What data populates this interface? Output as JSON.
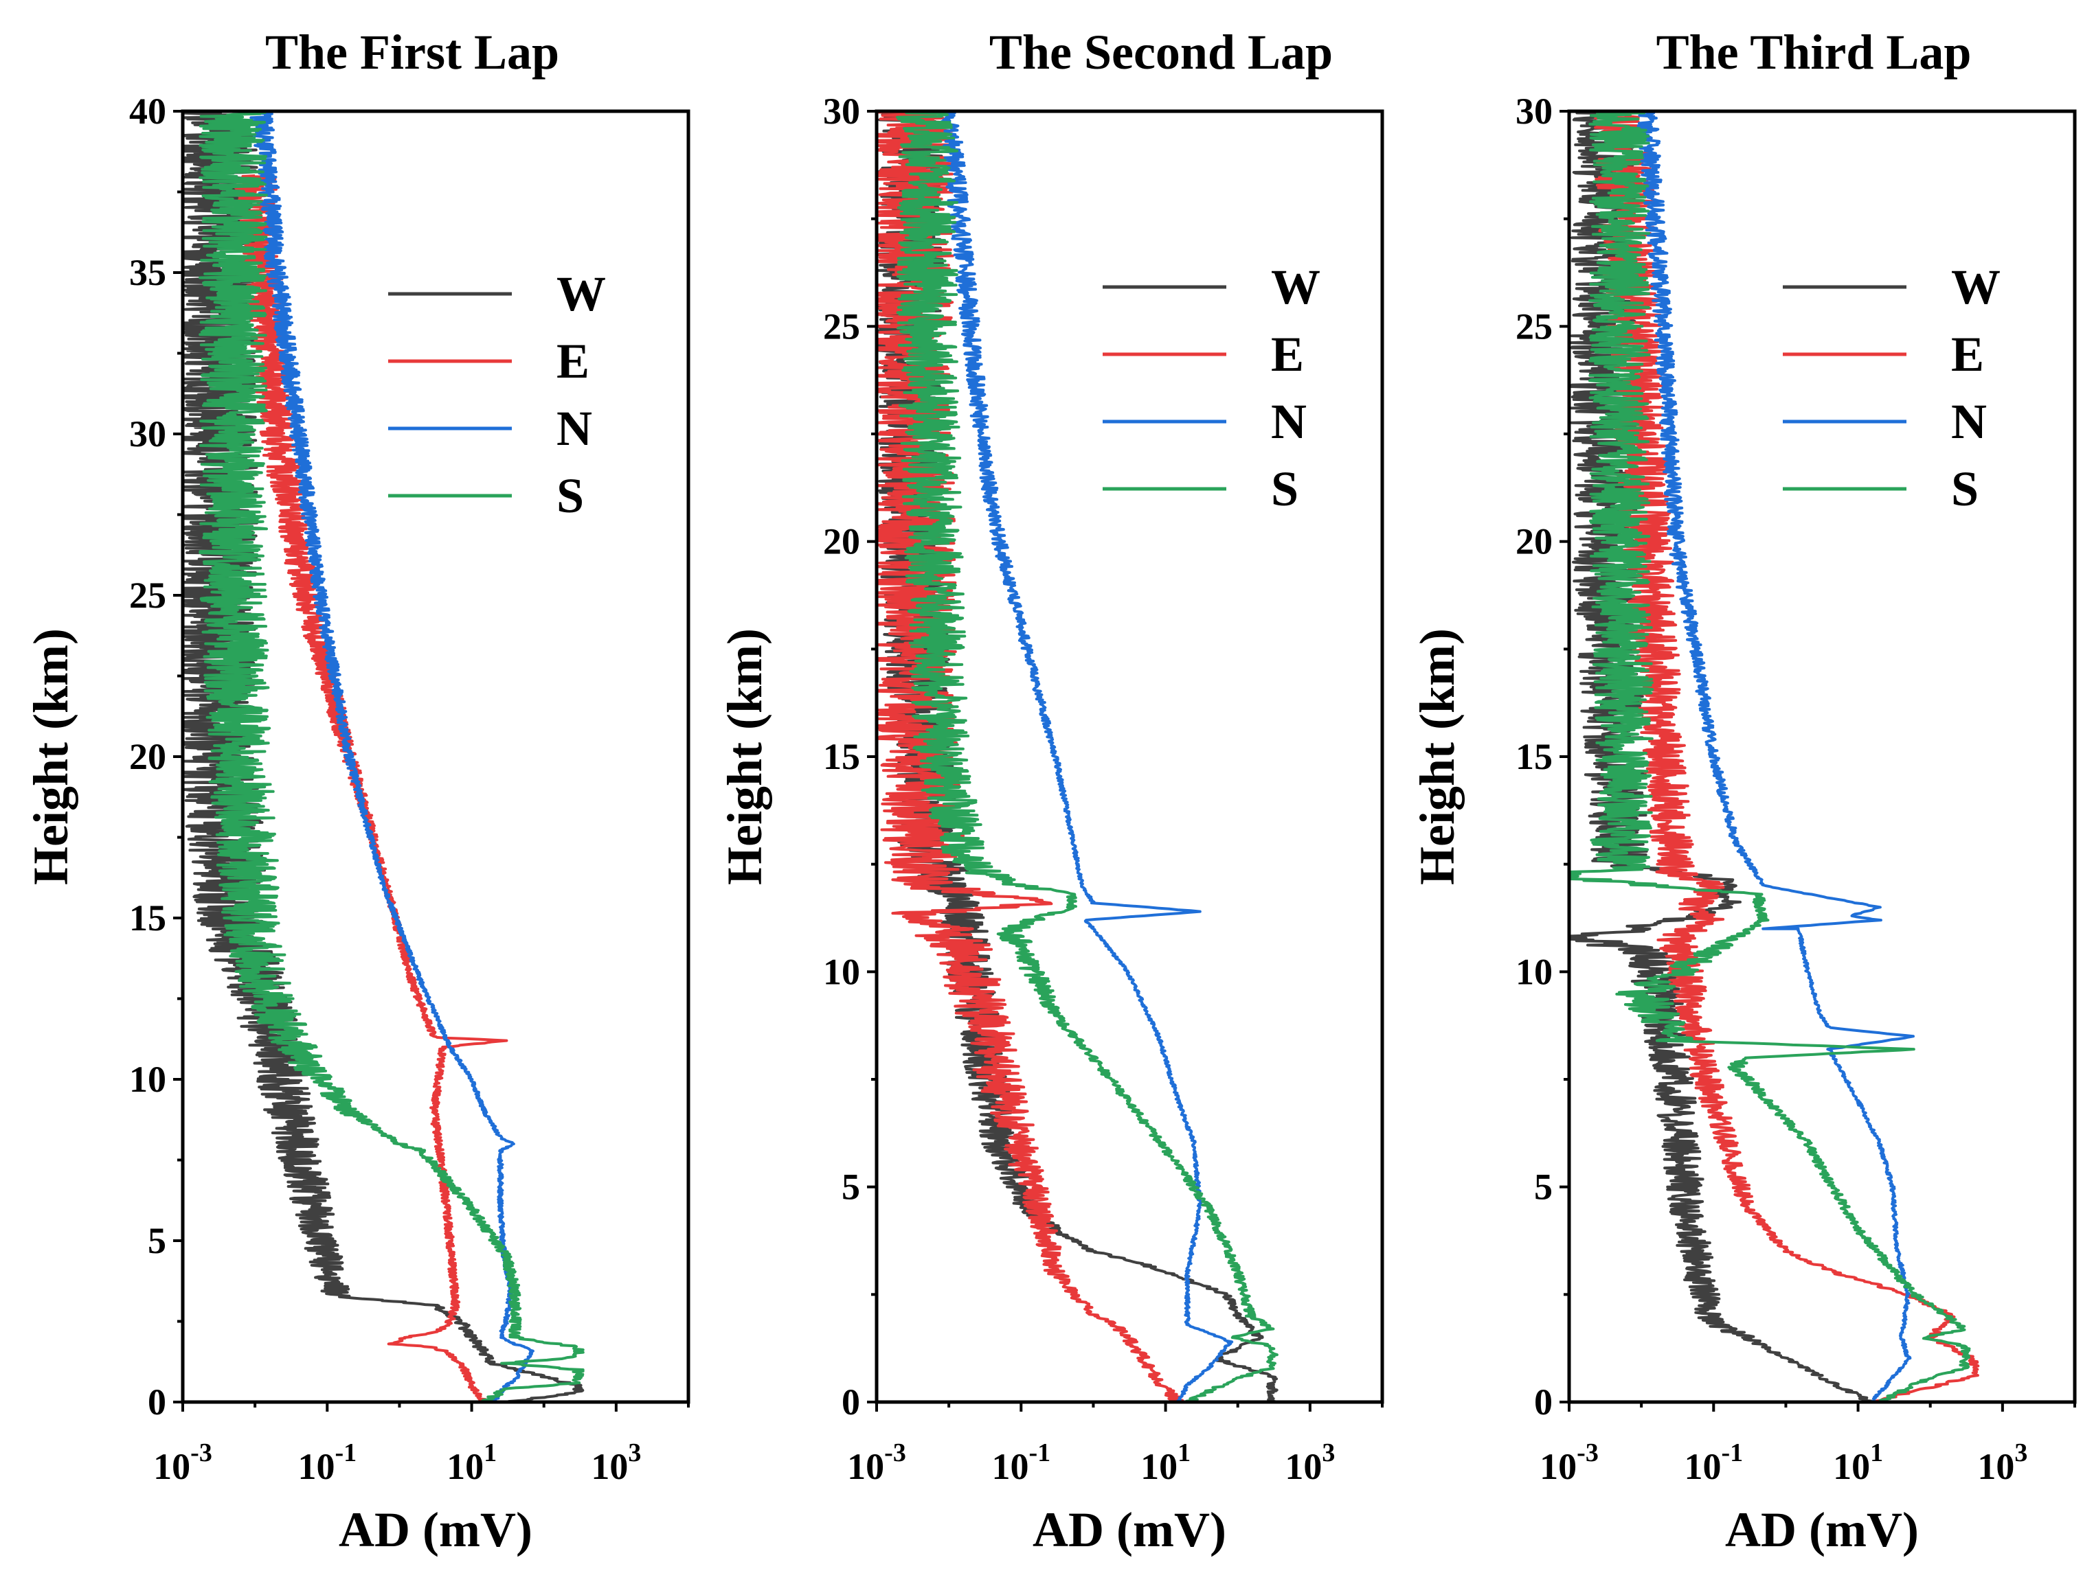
{
  "chart_data": [
    {
      "type": "line",
      "title": "The First Lap",
      "xlabel": "AD (mV)",
      "ylabel": "Height (km)",
      "xscale": "log",
      "xlim": [
        0.001,
        10000
      ],
      "ylim": [
        0,
        40
      ],
      "x_ticks": [
        {
          "base": "10",
          "exp": "-3"
        },
        {
          "base": "10",
          "exp": "-1"
        },
        {
          "base": "10",
          "exp": "1"
        },
        {
          "base": "10",
          "exp": "3"
        }
      ],
      "y_ticks": [
        "0",
        "5",
        "10",
        "15",
        "20",
        "25",
        "30",
        "35",
        "40"
      ],
      "legend_position": "top-right",
      "series": [
        {
          "name": "W",
          "color": "#404040",
          "noise": 0.55,
          "x": [
            30,
            300,
            300,
            20,
            10,
            7,
            3,
            0.13,
            0.08,
            0.05,
            0.03,
            0.02,
            0.01,
            0.005,
            0.003,
            0.003,
            0.003
          ],
          "y": [
            0,
            0.3,
            0.5,
            1.2,
            2.0,
            2.5,
            3.0,
            3.3,
            5,
            7,
            9,
            11,
            13,
            15,
            20,
            30,
            40
          ]
        },
        {
          "name": "E",
          "color": "#e8393a",
          "noise": 0.35,
          "x": [
            15,
            10,
            8,
            5,
            3,
            0.8,
            1.2,
            3.5,
            5,
            6,
            5,
            4,
            3,
            4,
            30,
            3,
            1.5,
            0.5,
            0.15,
            0.05,
            0.02,
            0.01
          ],
          "y": [
            0,
            0.5,
            1.0,
            1.5,
            1.7,
            1.8,
            2.0,
            2.2,
            2.5,
            3,
            5,
            7,
            9,
            11,
            11.2,
            11.3,
            13,
            17,
            21,
            25,
            30,
            38
          ]
        },
        {
          "name": "N",
          "color": "#1f6fd8",
          "noise": 0.2,
          "x": [
            20,
            25,
            30,
            40,
            70,
            40,
            25,
            30,
            35,
            28,
            25,
            25,
            40,
            25,
            15,
            10,
            5,
            2,
            0.6,
            0.2,
            0.08,
            0.04,
            0.02,
            0.012
          ],
          "y": [
            0,
            0.3,
            0.5,
            0.7,
            1.6,
            1.8,
            2.0,
            2.5,
            3.5,
            4.5,
            6,
            7.8,
            8,
            8.2,
            9,
            10,
            11,
            13,
            16,
            20,
            25,
            30,
            35,
            40
          ]
        },
        {
          "name": "S",
          "color": "#2aa35a",
          "noise": 0.5,
          "x": [
            15,
            30,
            300,
            300,
            30,
            300,
            300,
            40,
            40,
            30,
            10,
            2,
            1,
            0.2,
            0.05,
            0.02,
            0.01,
            0.006,
            0.005,
            0.005,
            0.005
          ],
          "y": [
            0,
            0.4,
            0.6,
            1.0,
            1.2,
            1.4,
            1.7,
            2.0,
            3.5,
            4.5,
            6,
            7.8,
            8,
            9,
            10.5,
            12,
            14,
            20,
            25,
            30,
            40
          ]
        }
      ]
    },
    {
      "type": "line",
      "title": "The Second Lap",
      "xlabel": "AD (mV)",
      "ylabel": "Height (km)",
      "xscale": "log",
      "xlim": [
        0.001,
        10000
      ],
      "ylim": [
        0,
        30
      ],
      "x_ticks": [
        {
          "base": "10",
          "exp": "-3"
        },
        {
          "base": "10",
          "exp": "-1"
        },
        {
          "base": "10",
          "exp": "1"
        },
        {
          "base": "10",
          "exp": "3"
        }
      ],
      "y_ticks": [
        "0",
        "5",
        "10",
        "15",
        "20",
        "25",
        "30"
      ],
      "legend_position": "top-right",
      "series": [
        {
          "name": "W",
          "color": "#404040",
          "noise": 0.45,
          "x": [
            300,
            300,
            50,
            200,
            100,
            70,
            5,
            1,
            0.3,
            0.12,
            0.05,
            0.03,
            0.02,
            0.015,
            0.01,
            0.005,
            0.003,
            0.003
          ],
          "y": [
            0,
            0.6,
            1.0,
            1.5,
            2.0,
            2.5,
            3.2,
            3.5,
            4.0,
            4.5,
            6,
            8,
            10,
            11.5,
            12,
            13,
            20,
            30
          ]
        },
        {
          "name": "E",
          "color": "#e8393a",
          "noise": 0.6,
          "x": [
            15,
            8,
            5,
            3,
            2,
            1,
            0.3,
            0.15,
            0.06,
            0.03,
            0.015,
            0.008,
            0.005,
            0.3,
            0.005,
            0.004,
            0.003,
            0.003
          ],
          "y": [
            0,
            0.5,
            1.0,
            1.5,
            1.8,
            2.0,
            3,
            5,
            7,
            9,
            10.5,
            11,
            11.4,
            11.6,
            12,
            14,
            20,
            30
          ]
        },
        {
          "name": "N",
          "color": "#1f6fd8",
          "noise": 0.18,
          "x": [
            15,
            20,
            40,
            80,
            40,
            20,
            20,
            30,
            25,
            15,
            8,
            3,
            1,
            0.8,
            30,
            1,
            0.7,
            0.3,
            0.1,
            0.05,
            0.03,
            0.02,
            0.01
          ],
          "y": [
            0,
            0.4,
            0.8,
            1.4,
            1.6,
            1.8,
            3,
            4.5,
            6,
            7,
            8.5,
            10,
            11,
            11.2,
            11.4,
            11.6,
            12,
            15,
            18,
            20,
            22,
            25,
            30
          ]
        },
        {
          "name": "S",
          "color": "#2aa35a",
          "noise": 0.45,
          "x": [
            20,
            80,
            300,
            300,
            80,
            300,
            150,
            100,
            40,
            15,
            3,
            1,
            0.3,
            0.15,
            0.07,
            0.5,
            0.5,
            0.1,
            0.04,
            0.02,
            0.012,
            0.008,
            0.006,
            0.005,
            0.005
          ],
          "y": [
            0,
            0.5,
            0.8,
            1.3,
            1.5,
            1.7,
            2.0,
            3,
            4.5,
            5.5,
            7,
            8,
            9,
            10,
            11,
            11.5,
            11.8,
            12.0,
            12.2,
            12.5,
            13.5,
            15,
            20,
            25,
            30
          ]
        }
      ]
    },
    {
      "type": "line",
      "title": "The Third Lap",
      "xlabel": "AD (mV)",
      "ylabel": "Height (km)",
      "xscale": "log",
      "xlim": [
        0.001,
        10000
      ],
      "ylim": [
        0,
        30
      ],
      "x_ticks": [
        {
          "base": "10",
          "exp": "-3"
        },
        {
          "base": "10",
          "exp": "-1"
        },
        {
          "base": "10",
          "exp": "1"
        },
        {
          "base": "10",
          "exp": "3"
        }
      ],
      "y_ticks": [
        "0",
        "5",
        "10",
        "15",
        "20",
        "25",
        "30"
      ],
      "legend_position": "top-right",
      "series": [
        {
          "name": "W",
          "color": "#404040",
          "noise": 0.45,
          "x": [
            15,
            5,
            1,
            0.3,
            0.1,
            0.06,
            0.04,
            0.03,
            0.02,
            0.012,
            0.001,
            0.01,
            0.2,
            0.1,
            0.2,
            0.005,
            0.003,
            0.003
          ],
          "y": [
            0,
            0.4,
            1.0,
            1.5,
            1.8,
            3,
            5,
            7,
            9,
            10.5,
            10.8,
            11,
            11.6,
            11.8,
            12.1,
            12.5,
            20,
            30
          ]
        },
        {
          "name": "E",
          "color": "#e8393a",
          "noise": 0.45,
          "x": [
            15,
            400,
            400,
            100,
            200,
            50,
            5,
            1,
            0.3,
            0.15,
            0.08,
            0.05,
            0.04,
            0.03,
            0.1,
            0.05,
            0.1,
            0.03,
            0.02,
            0.012,
            0.008,
            0.005
          ],
          "y": [
            0,
            0.6,
            1.0,
            1.5,
            2.0,
            2.5,
            3,
            3.5,
            4.5,
            6,
            7.5,
            9,
            10,
            10.8,
            11.2,
            11.5,
            12,
            12.3,
            15,
            20,
            25,
            30
          ]
        },
        {
          "name": "N",
          "color": "#1f6fd8",
          "noise": 0.18,
          "x": [
            15,
            25,
            50,
            40,
            50,
            35,
            30,
            20,
            10,
            4,
            60,
            4,
            3,
            2,
            1.5,
            0.5,
            20,
            8,
            20,
            0.5,
            0.2,
            0.1,
            0.05,
            0.03,
            0.02,
            0.012
          ],
          "y": [
            0,
            0.4,
            1.0,
            1.5,
            2.5,
            3.5,
            5,
            6,
            7,
            8.2,
            8.5,
            8.7,
            9,
            10,
            11,
            11.0,
            11.2,
            11.3,
            11.5,
            12.0,
            13,
            15,
            18,
            20,
            25,
            30
          ]
        },
        {
          "name": "S",
          "color": "#2aa35a",
          "noise": 0.45,
          "x": [
            20,
            80,
            300,
            300,
            80,
            300,
            60,
            10,
            2,
            0.3,
            0.2,
            0.3,
            60,
            0.03,
            0.01,
            0.5,
            0.4,
            0.001,
            0.005,
            0.006,
            0.005,
            0.005
          ],
          "y": [
            0,
            0.5,
            0.8,
            1.3,
            1.5,
            1.7,
            2.5,
            4,
            6,
            7.5,
            7.8,
            8.0,
            8.2,
            8.4,
            9.5,
            11.2,
            11.8,
            12.2,
            12.4,
            15,
            20,
            30
          ]
        }
      ]
    }
  ]
}
